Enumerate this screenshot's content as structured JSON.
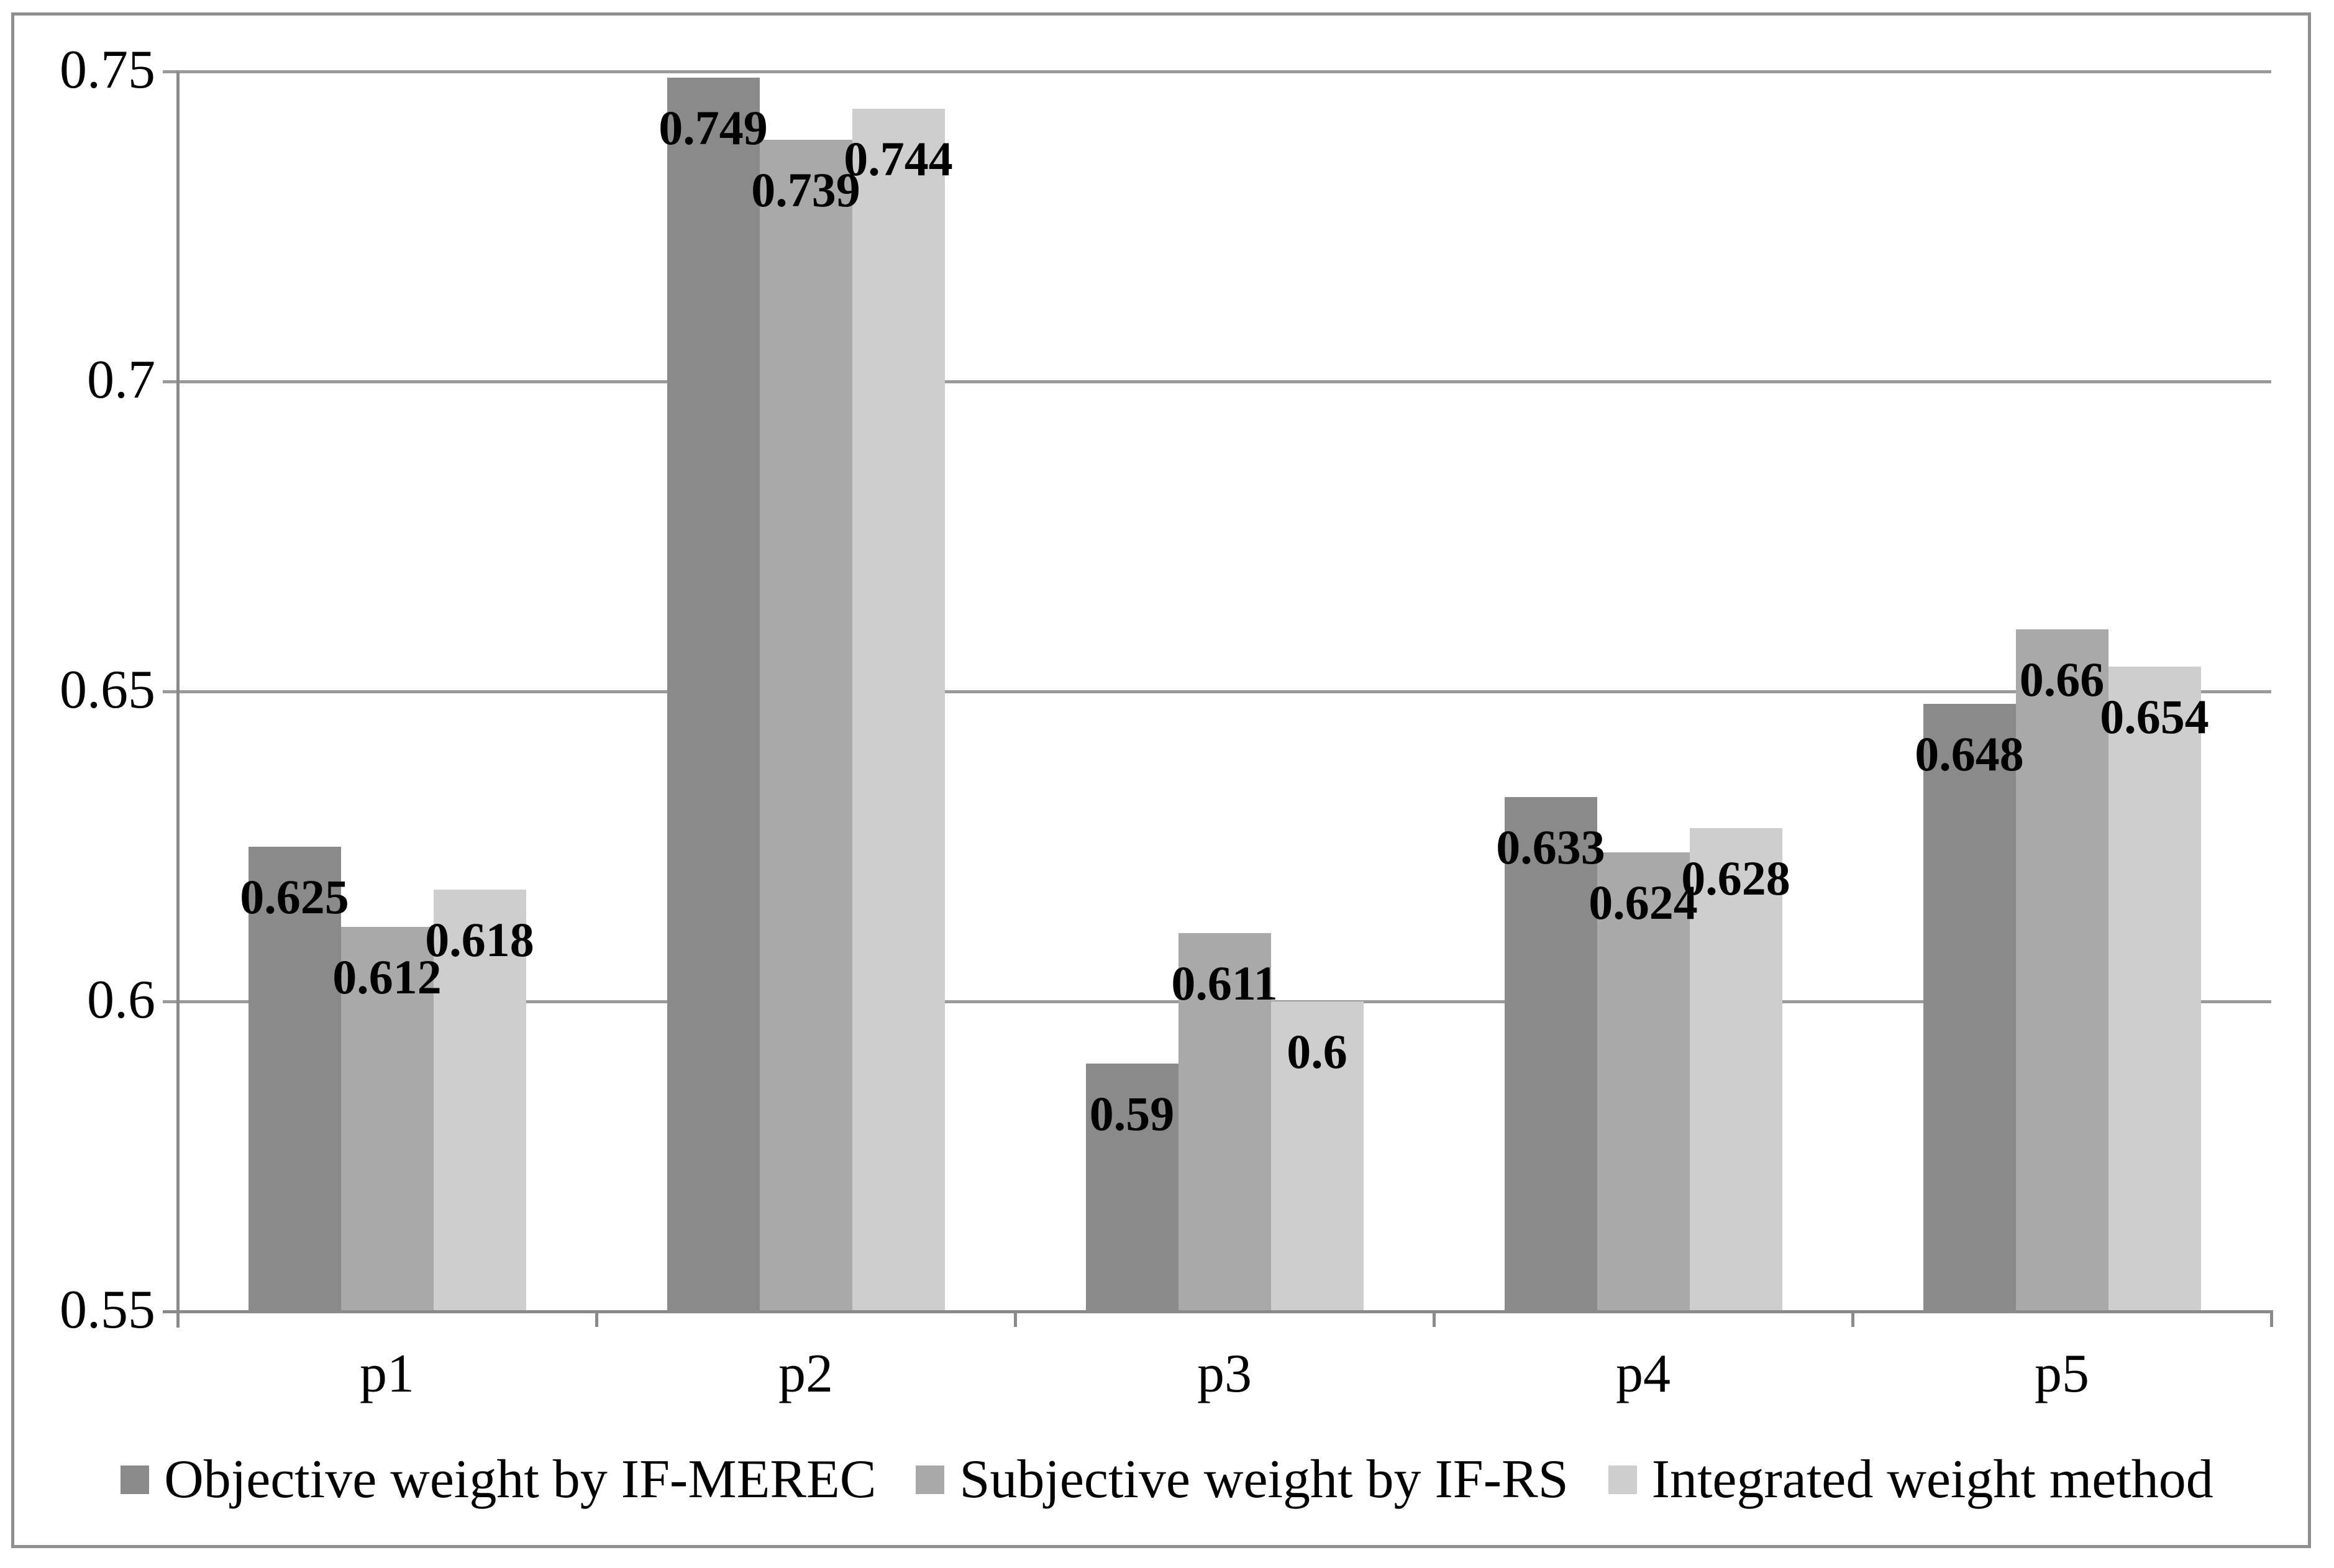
{
  "chart_data": {
    "type": "bar",
    "title": "",
    "categories": [
      "p1",
      "p2",
      "p3",
      "p4",
      "p5"
    ],
    "series": [
      {
        "name": "Objective weight by IF-MEREC",
        "color": "#8a8a8a",
        "values": [
          0.625,
          0.749,
          0.59,
          0.633,
          0.648
        ],
        "value_labels": [
          "0.625",
          "0.749",
          "0.59",
          "0.633",
          "0.648"
        ]
      },
      {
        "name": "Subjective weight by IF-RS",
        "color": "#a9a9a9",
        "values": [
          0.612,
          0.739,
          0.611,
          0.624,
          0.66
        ],
        "value_labels": [
          "0.612",
          "0.739",
          "0.611",
          "0.624",
          "0.66"
        ]
      },
      {
        "name": "Integrated weight method",
        "color": "#cecece",
        "values": [
          0.618,
          0.744,
          0.6,
          0.628,
          0.654
        ],
        "value_labels": [
          "0.618",
          "0.744",
          "0.6",
          "0.628",
          "0.654"
        ]
      }
    ],
    "y_axis": {
      "min": 0.55,
      "max": 0.75,
      "step": 0.05,
      "tick_labels": [
        "0.75",
        "0.7",
        "0.65",
        "0.6",
        "0.55"
      ]
    },
    "x_axis": {
      "tick_labels": [
        "p1",
        "p2",
        "p3",
        "p4",
        "p5"
      ]
    },
    "grid": true,
    "legend_position": "bottom",
    "colors": {
      "grid_line": "#9a9a9a",
      "axis_line": "#8a8a8a",
      "frame_border": "#8f8f8f",
      "data_label": "#000000",
      "background": "#ffffff"
    }
  }
}
